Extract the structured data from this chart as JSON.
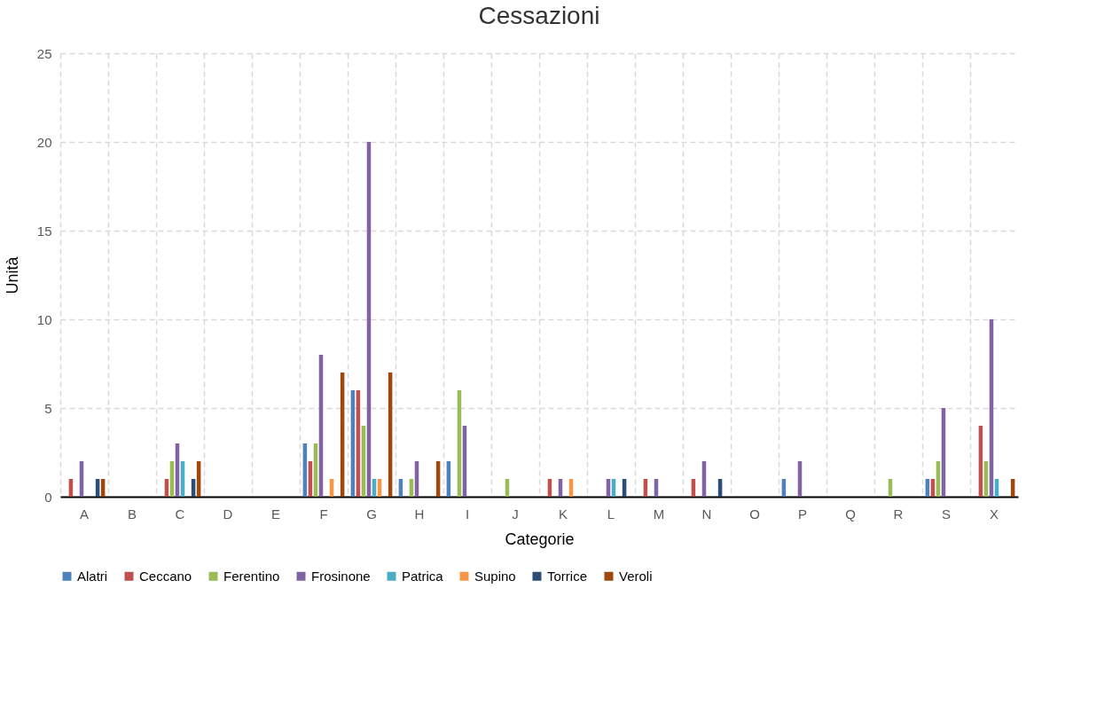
{
  "chart_data": {
    "type": "bar",
    "title": "Cessazioni",
    "xlabel": "Categorie",
    "ylabel": "Unità",
    "categories": [
      "A",
      "B",
      "C",
      "D",
      "E",
      "F",
      "G",
      "H",
      "I",
      "J",
      "K",
      "L",
      "M",
      "N",
      "O",
      "P",
      "Q",
      "R",
      "S",
      "X"
    ],
    "series": [
      {
        "name": "Alatri",
        "color": "#4f81bd",
        "values": [
          0,
          0,
          0,
          0,
          0,
          3,
          6,
          1,
          2,
          0,
          0,
          0,
          0,
          0,
          0,
          1,
          0,
          0,
          1,
          0
        ]
      },
      {
        "name": "Ceccano",
        "color": "#c0504d",
        "values": [
          1,
          0,
          1,
          0,
          0,
          2,
          6,
          0,
          0,
          0,
          1,
          0,
          1,
          1,
          0,
          0,
          0,
          0,
          1,
          4
        ]
      },
      {
        "name": "Ferentino",
        "color": "#9bbb59",
        "values": [
          0,
          0,
          2,
          0,
          0,
          3,
          4,
          1,
          6,
          1,
          0,
          0,
          0,
          0,
          0,
          0,
          0,
          1,
          2,
          2
        ]
      },
      {
        "name": "Frosinone",
        "color": "#8064a2",
        "values": [
          2,
          0,
          3,
          0,
          0,
          8,
          20,
          2,
          4,
          0,
          1,
          1,
          1,
          2,
          0,
          2,
          0,
          0,
          5,
          10
        ]
      },
      {
        "name": "Patrica",
        "color": "#4bacc6",
        "values": [
          0,
          0,
          2,
          0,
          0,
          0,
          1,
          0,
          0,
          0,
          0,
          1,
          0,
          0,
          0,
          0,
          0,
          0,
          0,
          1
        ]
      },
      {
        "name": "Supino",
        "color": "#f79646",
        "values": [
          0,
          0,
          0,
          0,
          0,
          1,
          1,
          0,
          0,
          0,
          1,
          0,
          0,
          0,
          0,
          0,
          0,
          0,
          0,
          0
        ]
      },
      {
        "name": "Torrice",
        "color": "#2c4d75",
        "values": [
          1,
          0,
          1,
          0,
          0,
          0,
          0,
          0,
          0,
          0,
          0,
          1,
          0,
          1,
          0,
          0,
          0,
          0,
          0,
          0
        ]
      },
      {
        "name": "Veroli",
        "color": "#9e480e",
        "values": [
          1,
          0,
          2,
          0,
          0,
          7,
          7,
          2,
          0,
          0,
          0,
          0,
          0,
          0,
          0,
          0,
          0,
          0,
          0,
          1
        ]
      }
    ],
    "ylim": [
      0,
      25
    ],
    "yticks": [
      0,
      5,
      10,
      15,
      20,
      25
    ],
    "grid": true,
    "legend": "bottom"
  }
}
